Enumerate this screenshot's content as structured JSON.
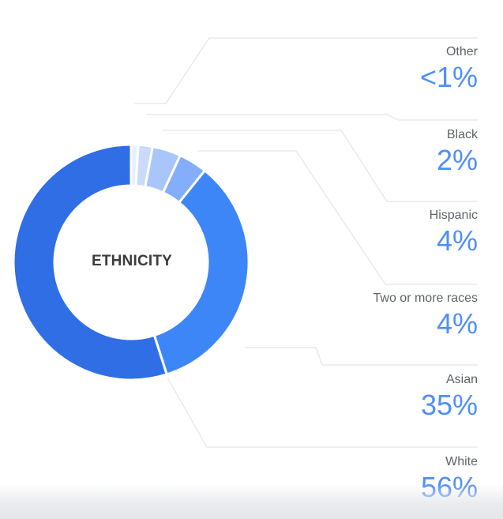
{
  "chart_data": {
    "type": "pie",
    "center_label": "ETHNICITY",
    "slices": [
      {
        "name": "Other",
        "value_label": "<1%",
        "value": 1,
        "color": "#e8efff"
      },
      {
        "name": "Black",
        "value_label": "2%",
        "value": 2,
        "color": "#c9dafd"
      },
      {
        "name": "Hispanic",
        "value_label": "4%",
        "value": 4,
        "color": "#a9c6fc"
      },
      {
        "name": "Two or more races",
        "value_label": "4%",
        "value": 4,
        "color": "#84adfa"
      },
      {
        "name": "Asian",
        "value_label": "35%",
        "value": 35,
        "color": "#3d86f7"
      },
      {
        "name": "White",
        "value_label": "56%",
        "value": 56,
        "color": "#2f6ee5"
      }
    ]
  },
  "colors": {
    "label_text": "#5f6368",
    "value_text": "#4f8ff7",
    "connector_line": "#e3e5e8"
  }
}
